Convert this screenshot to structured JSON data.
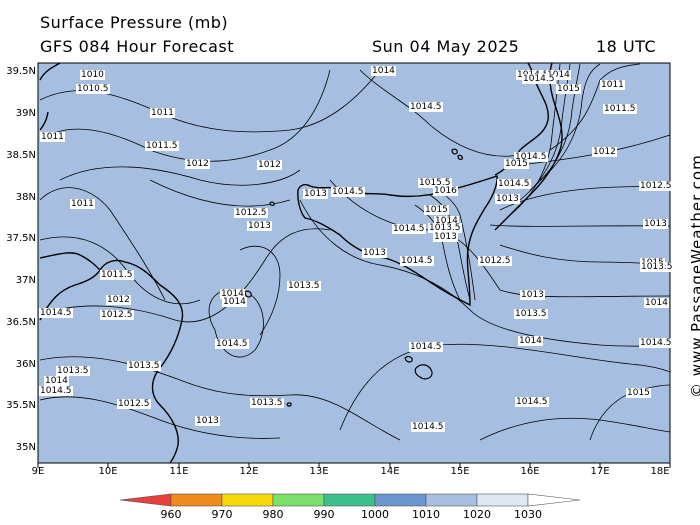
{
  "header": {
    "title": "Surface Pressure (mb)",
    "subtitle": "GFS 084 Hour Forecast",
    "date": "Sun 04 May 2025",
    "time": "18 UTC"
  },
  "credit": "© www.PassageWeather.com",
  "axes": {
    "lat_labels": [
      "39.5N",
      "39N",
      "38.5N",
      "38N",
      "37.5N",
      "37N",
      "36.5N",
      "36N",
      "35.5N",
      "35N"
    ],
    "lon_labels": [
      "9E",
      "10E",
      "11E",
      "12E",
      "13E",
      "14E",
      "15E",
      "16E",
      "17E",
      "18E"
    ]
  },
  "colors": {
    "sea": "#a6bfe0",
    "land": "#a6bfe0",
    "border": "#000000"
  },
  "isobar_labels": [
    "1010",
    "1010.5",
    "1011",
    "1011.5",
    "1012",
    "1012",
    "1011",
    "1012.5",
    "1013",
    "1013",
    "1014.5",
    "1014",
    "1014.5",
    "1015.5",
    "1016",
    "1015",
    "1014",
    "1013.5",
    "1013",
    "1014.5",
    "1014.5",
    "1013",
    "1014.5",
    "1015",
    "1012",
    "1012.5",
    "1013",
    "1013.5",
    "1014",
    "1014.5",
    "1014.5",
    "1015",
    "1014.5",
    "1014",
    "1013",
    "1012.5",
    "1011",
    "1011.5",
    "1014.5",
    "1014",
    "1015",
    "1014",
    "1013.5",
    "1014.5",
    "1013.5",
    "1012.5",
    "1012",
    "1011.5",
    "1014.5",
    "1014",
    "1013.5",
    "1013",
    "1014",
    "1014.5",
    "1014.5",
    "1012.5",
    "1013.5",
    "1014.5",
    "1013",
    "1015",
    "1014.5",
    "1013.5",
    "1011"
  ],
  "colorbar": {
    "ticks": [
      "960",
      "970",
      "980",
      "990",
      "1000",
      "1010",
      "1020",
      "1030"
    ],
    "colors": [
      "#e8413c",
      "#f08a1c",
      "#f5d90a",
      "#7be06a",
      "#3cbf8c",
      "#6a95cf",
      "#a6bfe0",
      "#dfe7f4"
    ]
  }
}
